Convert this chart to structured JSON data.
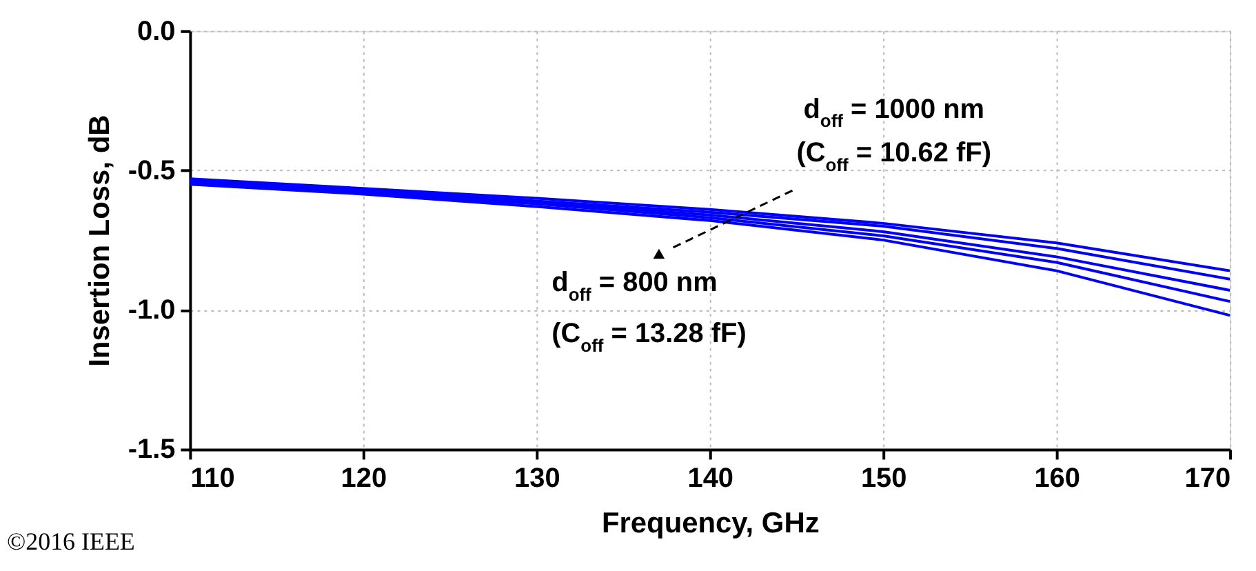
{
  "chart_data": {
    "type": "line",
    "xlabel": "Frequency, GHz",
    "ylabel": "Insertion Loss, dB",
    "x": [
      110,
      120,
      130,
      140,
      150,
      160,
      170
    ],
    "series": [
      {
        "color": "#0000ff",
        "values": [
          -0.53,
          -0.565,
          -0.6,
          -0.64,
          -0.69,
          -0.76,
          -0.86
        ]
      },
      {
        "color": "#0000ff",
        "values": [
          -0.535,
          -0.57,
          -0.61,
          -0.65,
          -0.7,
          -0.78,
          -0.89
        ]
      },
      {
        "color": "#0000ff",
        "values": [
          -0.54,
          -0.575,
          -0.615,
          -0.66,
          -0.72,
          -0.81,
          -0.93
        ]
      },
      {
        "color": "#0000ff",
        "values": [
          -0.545,
          -0.58,
          -0.62,
          -0.67,
          -0.735,
          -0.83,
          -0.97
        ]
      },
      {
        "color": "#0000ff",
        "values": [
          -0.55,
          -0.585,
          -0.63,
          -0.68,
          -0.75,
          -0.86,
          -1.02
        ]
      }
    ],
    "xlim": [
      110,
      170
    ],
    "xticks": [
      110,
      120,
      130,
      140,
      150,
      160,
      170
    ],
    "ylim": [
      -1.5,
      0
    ],
    "yticks": [
      {
        "value": -1.5,
        "label": "-1.5"
      },
      {
        "value": -1.0,
        "label": "-1.0"
      },
      {
        "value": -0.5,
        "label": "-0.5"
      },
      {
        "value": 0,
        "label": "0.0"
      }
    ],
    "grid": true,
    "legend": false,
    "marker": "none",
    "line_style": "solid",
    "annotations": [
      "d$_{off}$ = 1000 nm",
      "(C$_{off}$ = 10.62 fF)",
      "d$_{off}$ = 800 nm",
      "(C$_{off}$ = 13.28 fF)",
      "©2016 IEEE"
    ]
  }
}
